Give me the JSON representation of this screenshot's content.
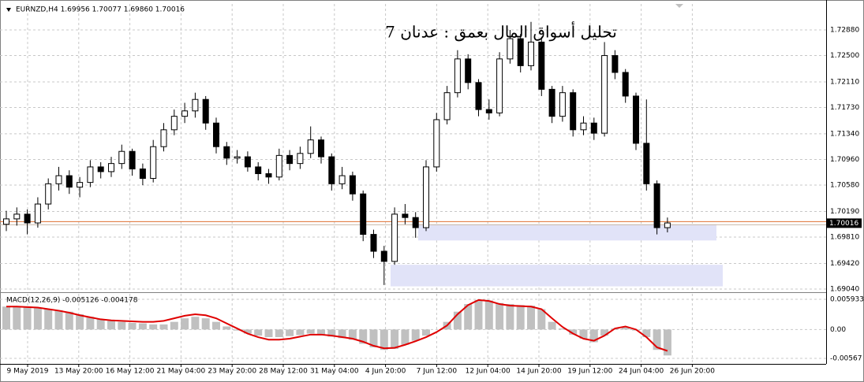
{
  "chart_data": {
    "type": "candlestick",
    "header": "EURNZD,H4  1.69956 1.70077 1.69860 1.70016",
    "title": "تحليل أسواق المال بعمق : عدنان 7",
    "open": [
      1.7,
      1.7008,
      1.7015,
      1.7002,
      1.703,
      1.706,
      1.7072,
      1.7055,
      1.7062,
      1.7085,
      1.7078,
      1.709,
      1.7108,
      1.7082,
      1.7068,
      1.7115,
      1.714,
      1.716,
      1.7168,
      1.7185,
      1.715,
      1.7115,
      1.7098,
      1.71,
      1.7085,
      1.7075,
      1.707,
      1.7102,
      1.709,
      1.7105,
      1.7125,
      1.71,
      1.706,
      1.7072,
      1.7045,
      1.6985,
      1.696,
      1.6945,
      1.7015,
      1.701,
      1.6995,
      1.7085,
      1.7155,
      1.7195,
      1.7245,
      1.721,
      1.717,
      1.7165,
      1.7245,
      1.7275,
      1.7235,
      1.727,
      1.72,
      1.716,
      1.7195,
      1.714,
      1.715,
      1.7135,
      1.725,
      1.7225,
      1.719,
      1.712,
      1.706,
      1.6995
    ],
    "high": [
      1.702,
      1.7025,
      1.7022,
      1.704,
      1.7068,
      1.7085,
      1.708,
      1.707,
      1.7095,
      1.7092,
      1.71,
      1.7118,
      1.7112,
      1.709,
      1.7125,
      1.715,
      1.717,
      1.718,
      1.7195,
      1.719,
      1.7158,
      1.7122,
      1.711,
      1.7108,
      1.7092,
      1.7082,
      1.7112,
      1.711,
      1.7115,
      1.7145,
      1.713,
      1.7105,
      1.7085,
      1.7078,
      1.705,
      1.6992,
      1.6968,
      1.7025,
      1.703,
      1.7018,
      1.7095,
      1.7165,
      1.7205,
      1.7258,
      1.7252,
      1.7215,
      1.7185,
      1.7255,
      1.7288,
      1.7282,
      1.73,
      1.7278,
      1.7205,
      1.7205,
      1.72,
      1.716,
      1.7158,
      1.727,
      1.7258,
      1.723,
      1.7195,
      1.7185,
      1.7065,
      1.701
    ],
    "low": [
      1.699,
      1.6998,
      1.6985,
      1.6995,
      1.7022,
      1.705,
      1.7045,
      1.704,
      1.7055,
      1.7068,
      1.707,
      1.7082,
      1.7072,
      1.7058,
      1.7062,
      1.7108,
      1.7132,
      1.715,
      1.7158,
      1.714,
      1.7105,
      1.7088,
      1.709,
      1.7078,
      1.7065,
      1.706,
      1.7065,
      1.708,
      1.7082,
      1.7098,
      1.709,
      1.705,
      1.7052,
      1.7035,
      1.6975,
      1.695,
      1.691,
      1.694,
      1.7,
      1.698,
      1.699,
      1.7078,
      1.7148,
      1.7188,
      1.72,
      1.716,
      1.7155,
      1.716,
      1.7238,
      1.7225,
      1.7228,
      1.719,
      1.715,
      1.7152,
      1.713,
      1.7132,
      1.7125,
      1.713,
      1.7215,
      1.718,
      1.711,
      1.705,
      1.6985,
      1.6988
    ],
    "close": [
      1.7008,
      1.7015,
      1.7002,
      1.703,
      1.706,
      1.7072,
      1.7055,
      1.7062,
      1.7085,
      1.7078,
      1.709,
      1.7108,
      1.7082,
      1.7068,
      1.7115,
      1.714,
      1.716,
      1.7168,
      1.7185,
      1.715,
      1.7115,
      1.7098,
      1.71,
      1.7085,
      1.7075,
      1.707,
      1.7102,
      1.709,
      1.7105,
      1.7125,
      1.71,
      1.706,
      1.7072,
      1.7045,
      1.6985,
      1.696,
      1.6945,
      1.7015,
      1.701,
      1.6995,
      1.7085,
      1.7155,
      1.7195,
      1.7245,
      1.721,
      1.717,
      1.7165,
      1.7245,
      1.7275,
      1.7235,
      1.727,
      1.72,
      1.716,
      1.7195,
      1.714,
      1.715,
      1.7135,
      1.725,
      1.7225,
      1.719,
      1.712,
      1.706,
      1.6995,
      1.7002
    ],
    "ylim": [
      1.69005,
      1.73265
    ],
    "yticks": [
      {
        "value": 1.7288,
        "label": "1.72880"
      },
      {
        "value": 1.725,
        "label": "1.72500"
      },
      {
        "value": 1.7211,
        "label": "1.72110"
      },
      {
        "value": 1.7173,
        "label": "1.71730"
      },
      {
        "value": 1.7134,
        "label": "1.71340"
      },
      {
        "value": 1.7096,
        "label": "1.70960"
      },
      {
        "value": 1.7058,
        "label": "1.70580"
      },
      {
        "value": 1.7019,
        "label": "1.70190"
      },
      {
        "value": 1.6981,
        "label": "1.69810"
      },
      {
        "value": 1.6942,
        "label": "1.69420"
      },
      {
        "value": 1.6904,
        "label": "1.69040"
      }
    ],
    "xtick_labels": [
      "9 May 2019",
      "13 May 20:00",
      "16 May 12:00",
      "21 May 04:00",
      "23 May 20:00",
      "28 May 12:00",
      "31 May 04:00",
      "4 Jun 20:00",
      "7 Jun 12:00",
      "12 Jun 04:00",
      "14 Jun 20:00",
      "19 Jun 12:00",
      "24 Jun 04:00",
      "26 Jun 20:00"
    ],
    "current_price": 1.70016,
    "zones": [
      {
        "from": 1.7,
        "to": 1.6976
      },
      {
        "from": 1.694,
        "to": 1.6908
      }
    ],
    "grid": true,
    "macd": {
      "label": "MACD(12,26,9) -0.005126 -0.004178",
      "histogram": [
        0.0045,
        0.0046,
        0.0045,
        0.0043,
        0.004,
        0.0038,
        0.0035,
        0.003,
        0.0025,
        0.002,
        0.0017,
        0.0015,
        0.0013,
        0.0012,
        0.001,
        0.001,
        0.0015,
        0.0022,
        0.0025,
        0.0022,
        0.0015,
        0.0006,
        -0.0002,
        -0.0008,
        -0.0012,
        -0.0015,
        -0.0015,
        -0.0013,
        -0.0011,
        -0.0008,
        -0.001,
        -0.0014,
        -0.0017,
        -0.002,
        -0.0028,
        -0.0035,
        -0.004,
        -0.0038,
        -0.003,
        -0.0022,
        -0.0012,
        0.0,
        0.0015,
        0.0035,
        0.005,
        0.0058,
        0.0057,
        0.0052,
        0.005,
        0.0048,
        0.0047,
        0.004,
        0.0015,
        0.0002,
        -0.001,
        -0.0018,
        -0.0025,
        -0.0012,
        0.0002,
        0.0005,
        -0.0002,
        -0.0015,
        -0.004,
        -0.0051
      ],
      "signal": [
        0.0045,
        0.0045,
        0.0044,
        0.0043,
        0.004,
        0.0037,
        0.0033,
        0.0028,
        0.0024,
        0.002,
        0.0018,
        0.0017,
        0.0016,
        0.0015,
        0.0015,
        0.0017,
        0.0022,
        0.0027,
        0.003,
        0.0028,
        0.0022,
        0.0012,
        0.0002,
        -0.0008,
        -0.0015,
        -0.002,
        -0.002,
        -0.0018,
        -0.0014,
        -0.001,
        -0.001,
        -0.0012,
        -0.0015,
        -0.0018,
        -0.0024,
        -0.0032,
        -0.0037,
        -0.0036,
        -0.003,
        -0.0023,
        -0.0015,
        -0.0005,
        0.0008,
        0.003,
        0.0048,
        0.0058,
        0.0056,
        0.005,
        0.0047,
        0.0046,
        0.0045,
        0.004,
        0.0022,
        0.0005,
        -0.0008,
        -0.0018,
        -0.0022,
        -0.0012,
        0.0002,
        0.0006,
        0.0,
        -0.0015,
        -0.0035,
        -0.0042
      ],
      "ylim": [
        -0.006753,
        0.007016
      ],
      "yticks": [
        0.005933,
        {
          "value": 0,
          "label": "0.00"
        },
        -0.00567
      ]
    }
  }
}
